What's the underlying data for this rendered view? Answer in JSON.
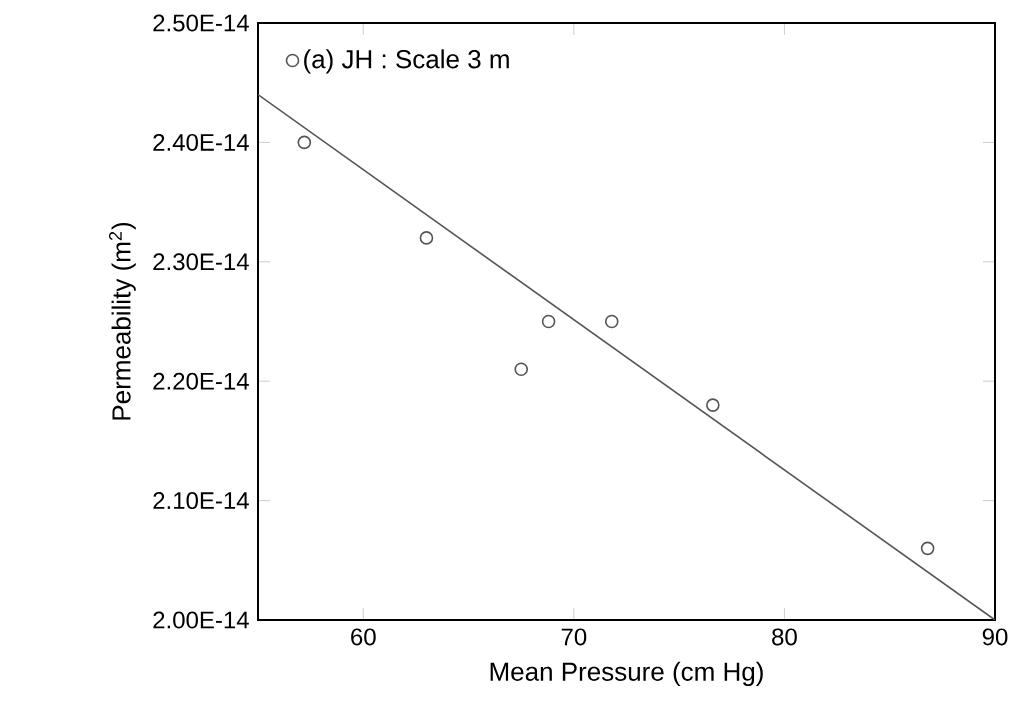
{
  "chart_data": {
    "type": "scatter",
    "xlabel": "Mean Pressure (cm Hg)",
    "ylabel": "Permeability (m$^{2}$)",
    "xlim": [
      55,
      90
    ],
    "ylim": [
      2e-14,
      2.5e-14
    ],
    "xticks": [
      60,
      70,
      80,
      90
    ],
    "yticks": [
      {
        "value": 2e-14,
        "label": "2.00E-14"
      },
      {
        "value": 2.1e-14,
        "label": "2.10E-14"
      },
      {
        "value": 2.2e-14,
        "label": "2.20E-14"
      },
      {
        "value": 2.3e-14,
        "label": "2.30E-14"
      },
      {
        "value": 2.4e-14,
        "label": "2.40E-14"
      },
      {
        "value": 2.5e-14,
        "label": "2.50E-14"
      }
    ],
    "legend": "top left",
    "series": [
      {
        "name": "(a) JH : Scale 3 m",
        "marker": "circle",
        "color": "#555555",
        "x": [
          57.2,
          63.0,
          67.5,
          68.8,
          71.8,
          76.6,
          86.8
        ],
        "values": [
          2.4e-14,
          2.32e-14,
          2.21e-14,
          2.25e-14,
          2.25e-14,
          2.18e-14,
          2.06e-14
        ]
      },
      {
        "type": "line",
        "color": "#555555",
        "x": [
          55,
          90
        ],
        "values": [
          2.44e-14,
          2e-14
        ]
      }
    ]
  }
}
